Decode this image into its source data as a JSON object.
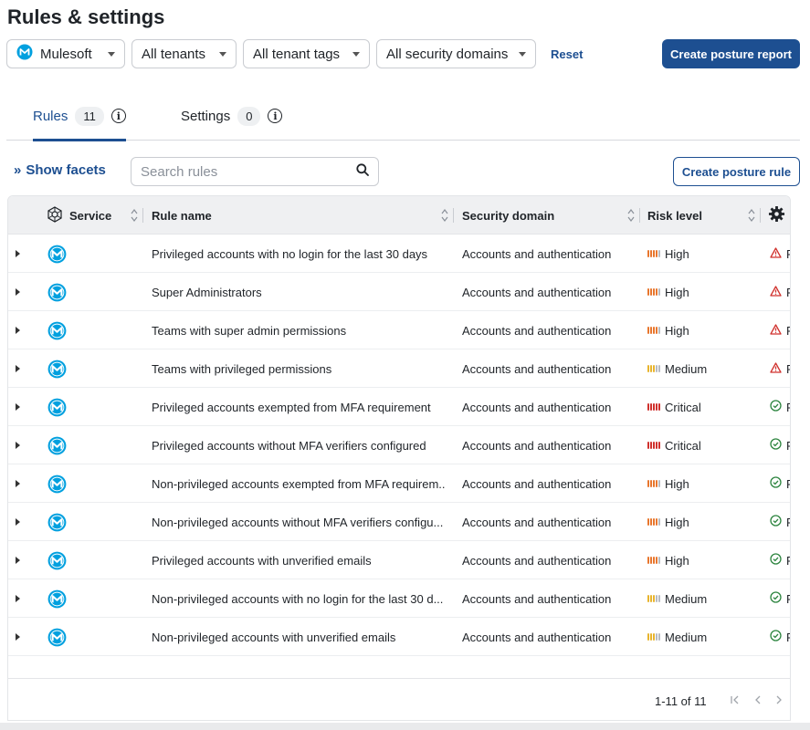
{
  "page": {
    "title": "Rules & settings"
  },
  "filters": {
    "service": "Mulesoft",
    "tenants": "All tenants",
    "tenant_tags": "All tenant tags",
    "security_domains": "All security domains",
    "reset": "Reset"
  },
  "actions": {
    "create_report": "Create posture report",
    "create_rule": "Create posture rule"
  },
  "tabs": [
    {
      "label": "Rules",
      "count": "11"
    },
    {
      "label": "Settings",
      "count": "0"
    }
  ],
  "facets": {
    "label": "Show facets"
  },
  "search": {
    "placeholder": "Search rules"
  },
  "table": {
    "columns": {
      "service": "Service",
      "rule_name": "Rule name",
      "security_domain": "Security domain",
      "risk_level": "Risk level"
    },
    "rows": [
      {
        "rule": "Privileged accounts with no login for the last 30 days",
        "domain": "Accounts and authentication",
        "risk": "High",
        "status": "F"
      },
      {
        "rule": "Super Administrators",
        "domain": "Accounts and authentication",
        "risk": "High",
        "status": "F"
      },
      {
        "rule": "Teams with super admin permissions",
        "domain": "Accounts and authentication",
        "risk": "High",
        "status": "F"
      },
      {
        "rule": "Teams with privileged permissions",
        "domain": "Accounts and authentication",
        "risk": "Medium",
        "status": "F"
      },
      {
        "rule": "Privileged accounts exempted from MFA requirement",
        "domain": "Accounts and authentication",
        "risk": "Critical",
        "status": "P"
      },
      {
        "rule": "Privileged accounts without MFA verifiers configured",
        "domain": "Accounts and authentication",
        "risk": "Critical",
        "status": "P"
      },
      {
        "rule": "Non-privileged accounts exempted from MFA requirem...",
        "domain": "Accounts and authentication",
        "risk": "High",
        "status": "P"
      },
      {
        "rule": "Non-privileged accounts without MFA verifiers configu...",
        "domain": "Accounts and authentication",
        "risk": "High",
        "status": "P"
      },
      {
        "rule": "Privileged accounts with unverified emails",
        "domain": "Accounts and authentication",
        "risk": "High",
        "status": "P"
      },
      {
        "rule": "Non-privileged accounts with no login for the last 30 d...",
        "domain": "Accounts and authentication",
        "risk": "Medium",
        "status": "P"
      },
      {
        "rule": "Non-privileged accounts with unverified emails",
        "domain": "Accounts and authentication",
        "risk": "Medium",
        "status": "P"
      }
    ]
  },
  "pagination": {
    "range": "1-11 of 11",
    "first": "|<",
    "prev": "<",
    "next": ">"
  },
  "colors": {
    "accent": "#1d4f91",
    "mulesoft": "#00a0df",
    "high": "#e8762d",
    "medium": "#e8b42d",
    "critical": "#d0312d",
    "fail": "#d0312d",
    "pass": "#2e8540"
  },
  "icons": {
    "service_header": "service-settings-icon",
    "row_service": "mulesoft-logo-icon",
    "fail": "warning-triangle-icon",
    "pass": "check-circle-icon",
    "columns": "gear-icon"
  }
}
